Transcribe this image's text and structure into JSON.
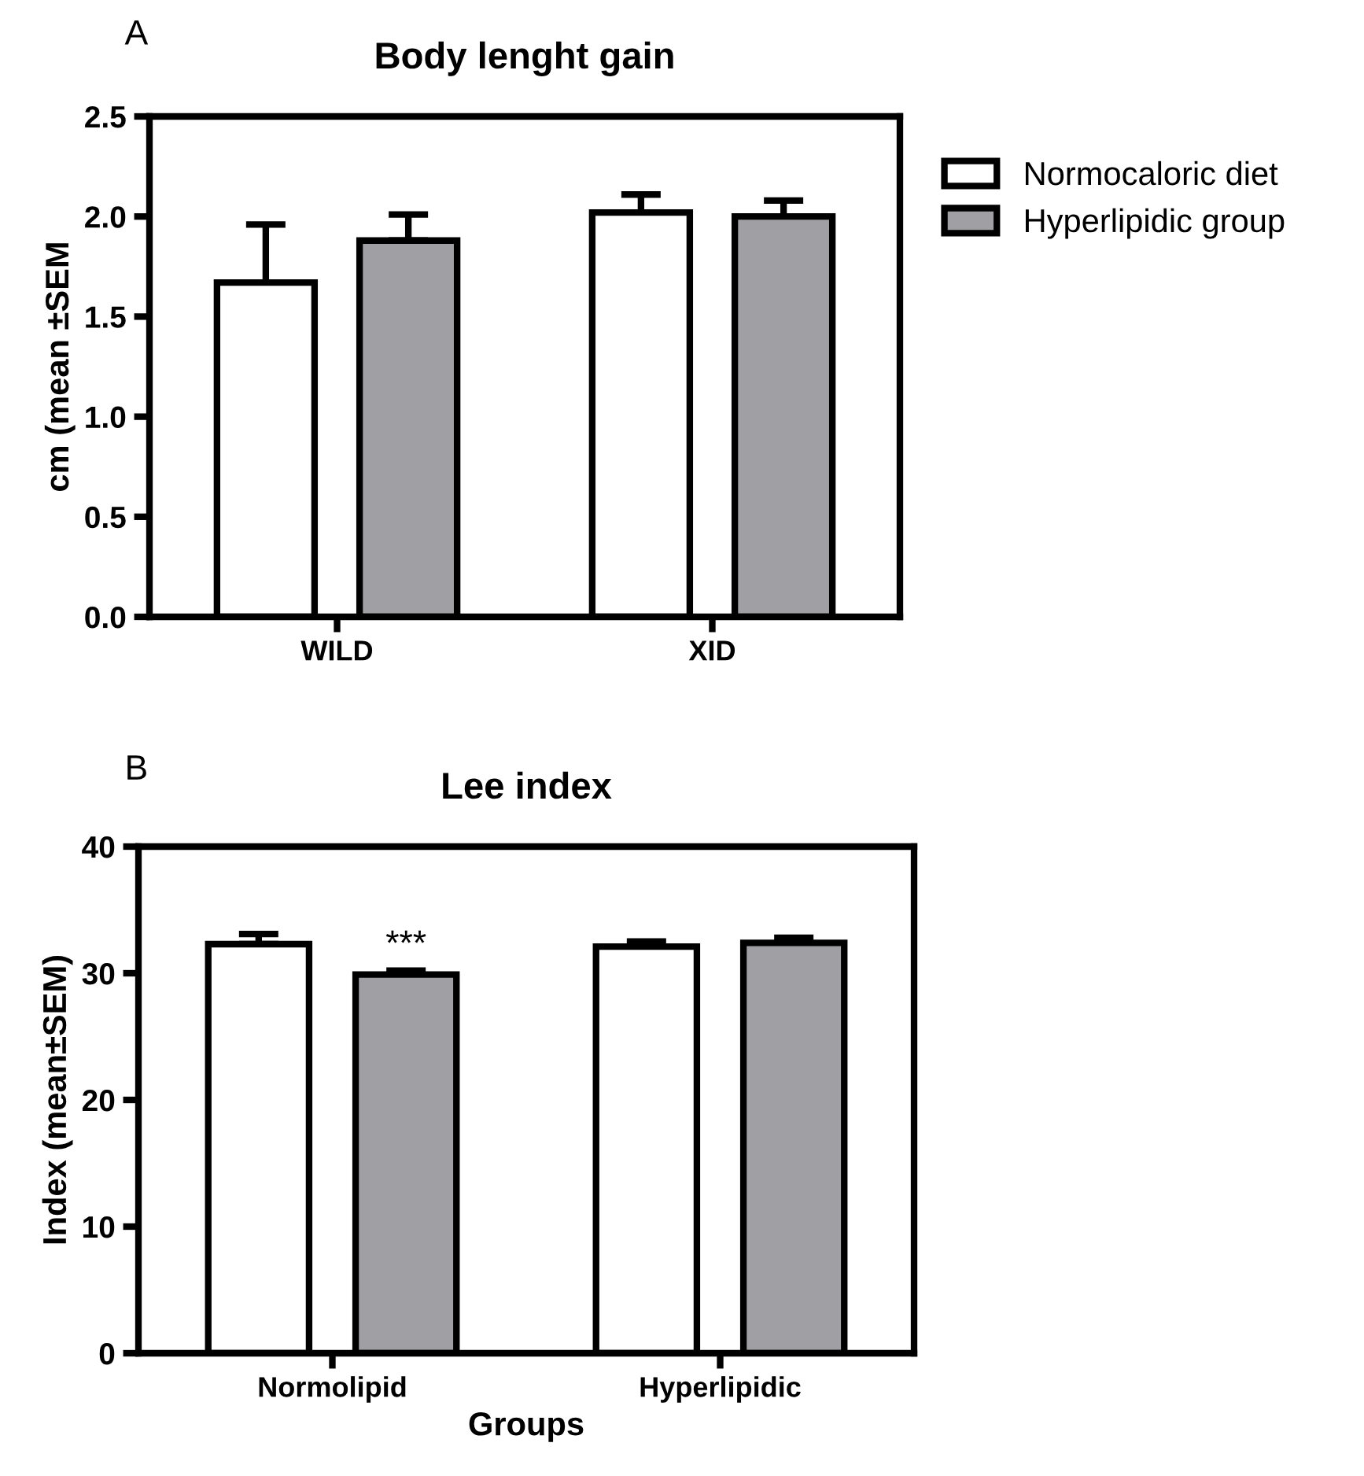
{
  "chart_data": [
    {
      "type": "bar",
      "title": "Body lenght gain",
      "ylabel": "cm (mean ±SEM",
      "categories": [
        "WILD",
        "XID"
      ],
      "series": [
        {
          "name": "Normocaloric diet",
          "color": "#ffffff",
          "values": [
            1.67,
            2.02
          ],
          "errors": [
            0.29,
            0.09
          ]
        },
        {
          "name": "Hyperlipidic group",
          "color": "#a0a0a4",
          "values": [
            1.88,
            2.0
          ],
          "errors": [
            0.13,
            0.08
          ]
        }
      ],
      "ylim": [
        0,
        2.5
      ],
      "yticks": [
        {
          "value": 0,
          "label": "0.0"
        },
        0.5,
        {
          "value": 1,
          "label": "1.0"
        },
        1.5,
        {
          "value": 2,
          "label": "2.0"
        },
        2.5
      ],
      "grid": false,
      "legend": "right",
      "annotations": [
        "A"
      ]
    },
    {
      "type": "bar",
      "title": "Lee index",
      "xlabel": "Groups",
      "ylabel": "Index (mean±SEM)",
      "categories": [
        "Normolipid",
        "Hyperlipidic"
      ],
      "series": [
        {
          "color": "#ffffff",
          "values": [
            32.3,
            32.1
          ],
          "errors": [
            0.8,
            0.4
          ]
        },
        {
          "color": "#a0a0a4",
          "values": [
            29.9,
            32.4
          ],
          "errors": [
            0.3,
            0.4
          ]
        }
      ],
      "ylim": [
        0,
        40
      ],
      "yticks": [
        0,
        10,
        20,
        30,
        40
      ],
      "grid": false,
      "legend": false,
      "annotations": [
        "B",
        "***"
      ]
    }
  ]
}
